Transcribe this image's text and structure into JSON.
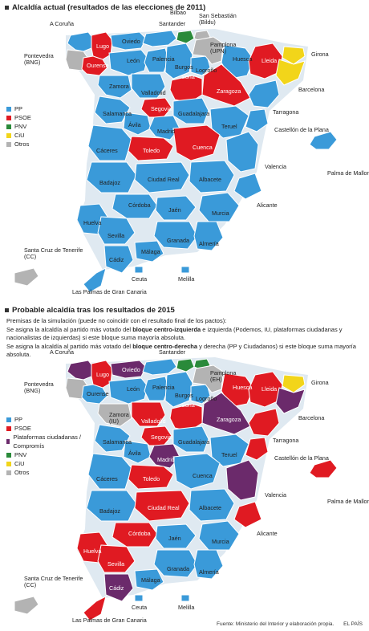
{
  "colors": {
    "PP": "#3a9ad9",
    "PSOE": "#e01a22",
    "Plataformas": "#6b2a6b",
    "PNV": "#2a8a3a",
    "CiU": "#f2d51a",
    "Otros": "#b3b3b3",
    "border": "#ffffff",
    "sea": "#ffffff"
  },
  "map1": {
    "title": "Alcaldía actual (resultados de las elecciones de 2011)",
    "legend": [
      {
        "key": "PP",
        "label": "PP"
      },
      {
        "key": "PSOE",
        "label": "PSOE"
      },
      {
        "key": "PNV",
        "label": "PNV"
      },
      {
        "key": "CiU",
        "label": "CiU"
      },
      {
        "key": "Otros",
        "label": "Otros"
      }
    ]
  },
  "map2": {
    "title": "Probable alcaldía tras los resultados de 2015",
    "notes": {
      "line1": "Premisas de la simulación (puede no coincidir con el resultado final de los pactos):",
      "line2_pre": "Se asigna la alcaldía al partido más votado del ",
      "line2_bold": "bloque centro-izquierda",
      "line2_post": " e izquierda (Podemos, IU, plataformas ciudadanas y nacionalistas de izquierdas) si este bloque suma mayoría absoluta.",
      "line3_pre": "Se asigna la alcaldía al partido más votado del ",
      "line3_bold": "bloque centro-derecha",
      "line3_post": " y derecha (PP y Ciudadanos) si este bloque suma mayoría absoluta."
    },
    "legend": [
      {
        "key": "PP",
        "label": "PP"
      },
      {
        "key": "PSOE",
        "label": "PSOE"
      },
      {
        "key": "Plataformas",
        "label": "Plataformas ciudadanas / Compromís"
      },
      {
        "key": "PNV",
        "label": "PNV"
      },
      {
        "key": "CiU",
        "label": "CiU"
      },
      {
        "key": "Otros",
        "label": "Otros"
      }
    ]
  },
  "provinces_2011": [
    {
      "name": "A Coruña",
      "party": "PP"
    },
    {
      "name": "Lugo",
      "party": "PSOE"
    },
    {
      "name": "Pontevedra (BNG)",
      "party": "Otros"
    },
    {
      "name": "Ourense",
      "party": "PSOE"
    },
    {
      "name": "Oviedo",
      "party": "PP"
    },
    {
      "name": "Santander",
      "party": "PP"
    },
    {
      "name": "Bilbao",
      "party": "PNV"
    },
    {
      "name": "San Sebastián (Bildu)",
      "party": "Otros"
    },
    {
      "name": "León",
      "party": "PP"
    },
    {
      "name": "Palencia",
      "party": "PP"
    },
    {
      "name": "Burgos",
      "party": "PP"
    },
    {
      "name": "Logroño",
      "party": "PP"
    },
    {
      "name": "Pamplona (UPN)",
      "party": "Otros"
    },
    {
      "name": "Huesca",
      "party": "PP"
    },
    {
      "name": "Lleida",
      "party": "PSOE"
    },
    {
      "name": "Girona",
      "party": "CiU"
    },
    {
      "name": "Barcelona",
      "party": "CiU"
    },
    {
      "name": "Zamora",
      "party": "PP"
    },
    {
      "name": "Valladolid",
      "party": "PP"
    },
    {
      "name": "Soria",
      "party": "PSOE"
    },
    {
      "name": "Zaragoza",
      "party": "PSOE"
    },
    {
      "name": "Tarragona",
      "party": "PP"
    },
    {
      "name": "Salamanca",
      "party": "PP"
    },
    {
      "name": "Segovia",
      "party": "PSOE"
    },
    {
      "name": "Ávila",
      "party": "PP"
    },
    {
      "name": "Guadalajara",
      "party": "PP"
    },
    {
      "name": "Madrid",
      "party": "PP"
    },
    {
      "name": "Teruel",
      "party": "PP"
    },
    {
      "name": "Castellón de la Plana",
      "party": "PP"
    },
    {
      "name": "Cáceres",
      "party": "PP"
    },
    {
      "name": "Toledo",
      "party": "PSOE"
    },
    {
      "name": "Cuenca",
      "party": "PSOE"
    },
    {
      "name": "Valencia",
      "party": "PP"
    },
    {
      "name": "Palma de Mallorca",
      "party": "PP"
    },
    {
      "name": "Badajoz",
      "party": "PP"
    },
    {
      "name": "Ciudad Real",
      "party": "PP"
    },
    {
      "name": "Albacete",
      "party": "PP"
    },
    {
      "name": "Alicante",
      "party": "PP"
    },
    {
      "name": "Córdoba",
      "party": "PP"
    },
    {
      "name": "Jaén",
      "party": "PP"
    },
    {
      "name": "Murcia",
      "party": "PP"
    },
    {
      "name": "Huelva",
      "party": "PP"
    },
    {
      "name": "Sevilla",
      "party": "PP"
    },
    {
      "name": "Granada",
      "party": "PP"
    },
    {
      "name": "Almería",
      "party": "PP"
    },
    {
      "name": "Málaga",
      "party": "PP"
    },
    {
      "name": "Cádiz",
      "party": "PP"
    },
    {
      "name": "Santa Cruz de Tenerife (CC)",
      "party": "Otros"
    },
    {
      "name": "Las Palmas de Gran Canaria",
      "party": "PP"
    },
    {
      "name": "Ceuta",
      "party": "PP"
    },
    {
      "name": "Melilla",
      "party": "PP"
    }
  ],
  "provinces_2015": [
    {
      "name": "A Coruña",
      "party": "Plataformas"
    },
    {
      "name": "Lugo",
      "party": "PSOE"
    },
    {
      "name": "Pontevedra (BNG)",
      "party": "Otros"
    },
    {
      "name": "Ourense",
      "party": "PP"
    },
    {
      "name": "Oviedo",
      "party": "Plataformas"
    },
    {
      "name": "Santander",
      "party": "PP"
    },
    {
      "name": "Bilbao",
      "party": "PNV"
    },
    {
      "name": "San Sebastián",
      "party": "PNV"
    },
    {
      "name": "León",
      "party": "PP"
    },
    {
      "name": "Palencia",
      "party": "PP"
    },
    {
      "name": "Burgos",
      "party": "PP"
    },
    {
      "name": "Logroño",
      "party": "PP"
    },
    {
      "name": "Pamplona (EH)",
      "party": "Otros"
    },
    {
      "name": "Huesca",
      "party": "PSOE"
    },
    {
      "name": "Lleida",
      "party": "PSOE"
    },
    {
      "name": "Girona",
      "party": "CiU"
    },
    {
      "name": "Barcelona",
      "party": "Plataformas"
    },
    {
      "name": "Zamora (IU)",
      "party": "Otros"
    },
    {
      "name": "Valladolid",
      "party": "PSOE"
    },
    {
      "name": "Soria",
      "party": "PSOE"
    },
    {
      "name": "Zaragoza",
      "party": "Plataformas"
    },
    {
      "name": "Tarragona",
      "party": "PSOE"
    },
    {
      "name": "Salamanca",
      "party": "PP"
    },
    {
      "name": "Segovia",
      "party": "PSOE"
    },
    {
      "name": "Ávila",
      "party": "PP"
    },
    {
      "name": "Guadalajara",
      "party": "PP"
    },
    {
      "name": "Madrid",
      "party": "Plataformas"
    },
    {
      "name": "Teruel",
      "party": "PP"
    },
    {
      "name": "Castellón de la Plana",
      "party": "PSOE"
    },
    {
      "name": "Cáceres",
      "party": "PP"
    },
    {
      "name": "Toledo",
      "party": "PSOE"
    },
    {
      "name": "Cuenca",
      "party": "PP"
    },
    {
      "name": "Valencia",
      "party": "Plataformas"
    },
    {
      "name": "Palma de Mallorca",
      "party": "PSOE"
    },
    {
      "name": "Badajoz",
      "party": "PP"
    },
    {
      "name": "Ciudad Real",
      "party": "PSOE"
    },
    {
      "name": "Albacete",
      "party": "PP"
    },
    {
      "name": "Alicante",
      "party": "PSOE"
    },
    {
      "name": "Córdoba",
      "party": "PSOE"
    },
    {
      "name": "Jaén",
      "party": "PP"
    },
    {
      "name": "Murcia",
      "party": "PP"
    },
    {
      "name": "Huelva",
      "party": "PSOE"
    },
    {
      "name": "Sevilla",
      "party": "PSOE"
    },
    {
      "name": "Granada",
      "party": "PP"
    },
    {
      "name": "Almería",
      "party": "PP"
    },
    {
      "name": "Málaga",
      "party": "PP"
    },
    {
      "name": "Cádiz",
      "party": "Plataformas"
    },
    {
      "name": "Santa Cruz de Tenerife (CC)",
      "party": "Otros"
    },
    {
      "name": "Las Palmas de Gran Canaria",
      "party": "PSOE"
    },
    {
      "name": "Ceuta",
      "party": "PP"
    },
    {
      "name": "Melilla",
      "party": "PP"
    }
  ],
  "footer": {
    "source": "Fuente: Ministerio del Interior y elaboración propia.",
    "brand": "EL PAÍS"
  }
}
